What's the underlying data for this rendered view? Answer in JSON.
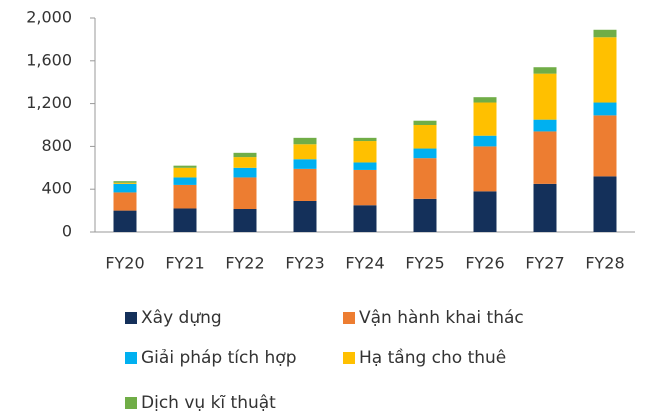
{
  "chart_data": {
    "type": "stacked_bar",
    "categories": [
      "FY20",
      "FY21",
      "FY22",
      "FY23",
      "FY24",
      "FY25",
      "FY26",
      "FY27",
      "FY28"
    ],
    "series": [
      {
        "name": "Xây dựng",
        "color": "#14305a",
        "values": [
          200,
          220,
          215,
          290,
          250,
          310,
          380,
          450,
          520
        ]
      },
      {
        "name": "Vận hành khai thác",
        "color": "#ed7d31",
        "values": [
          170,
          220,
          295,
          300,
          330,
          380,
          420,
          490,
          570
        ]
      },
      {
        "name": "Giải pháp tích hợp",
        "color": "#00b0f0",
        "values": [
          80,
          70,
          90,
          90,
          70,
          90,
          100,
          110,
          120
        ]
      },
      {
        "name": "Hạ tầng cho thuê",
        "color": "#ffc000",
        "values": [
          10,
          90,
          100,
          140,
          200,
          220,
          310,
          430,
          610
        ]
      },
      {
        "name": "Dịch vụ kĩ thuật",
        "color": "#70ad47",
        "values": [
          15,
          20,
          40,
          60,
          30,
          40,
          50,
          60,
          70
        ]
      }
    ],
    "ylim": [
      0,
      2000
    ],
    "yticks": [
      0,
      400,
      800,
      {
        "value": 1200,
        "label": "1,200"
      },
      {
        "value": 1600,
        "label": "1,600"
      },
      {
        "value": 2000,
        "label": "2,000"
      }
    ],
    "grid": false
  }
}
